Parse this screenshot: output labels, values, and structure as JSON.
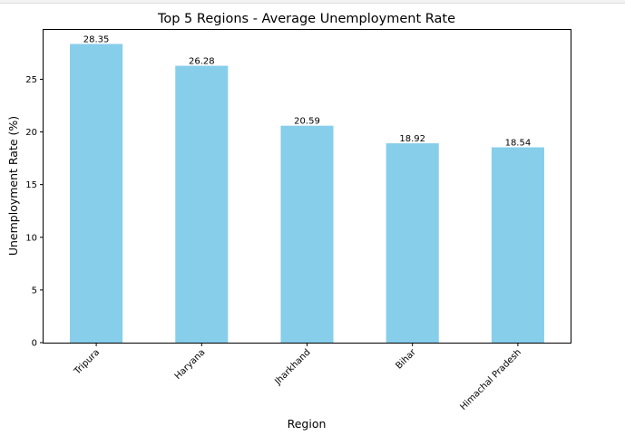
{
  "chart_data": {
    "type": "bar",
    "title": "Top 5 Regions - Average Unemployment Rate",
    "xlabel": "Region",
    "ylabel": "Unemployment Rate (%)",
    "categories": [
      "Tripura",
      "Haryana",
      "Jharkhand",
      "Bihar",
      "Himachal Pradesh"
    ],
    "values": [
      28.35,
      26.28,
      20.59,
      18.92,
      18.54
    ],
    "data_labels": [
      "28.35",
      "26.28",
      "20.59",
      "18.92",
      "18.54"
    ],
    "yticks": [
      0,
      5,
      10,
      15,
      20,
      25
    ],
    "ylim": [
      0,
      29.77
    ],
    "grid": false,
    "bar_color": "#87CEEB"
  }
}
